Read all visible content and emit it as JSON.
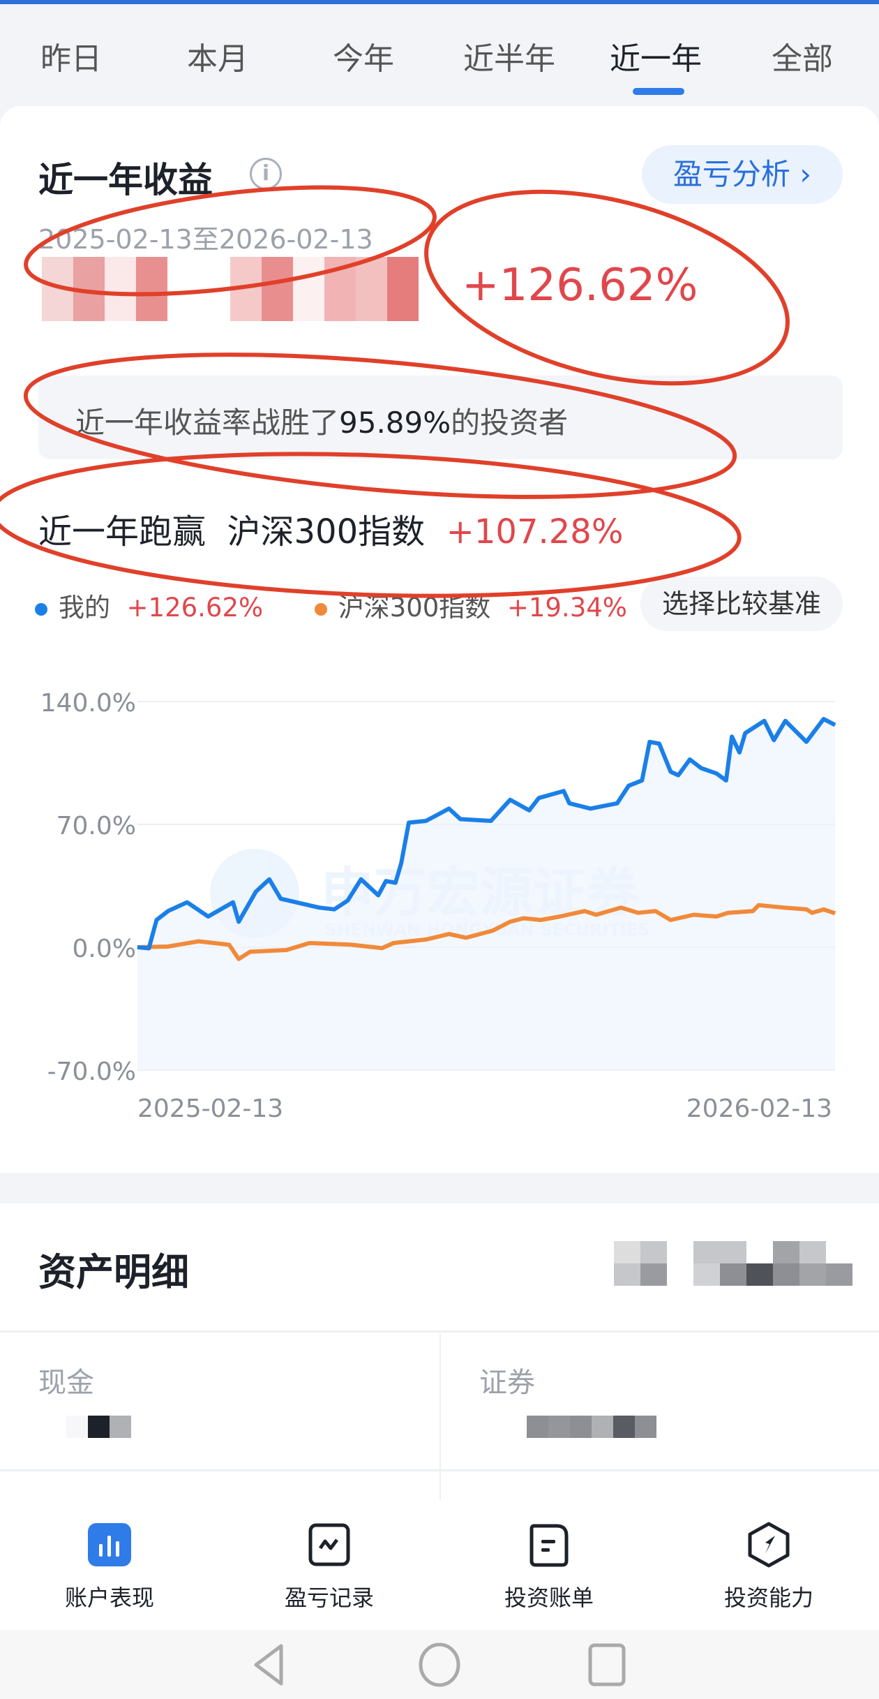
{
  "tabs": [
    {
      "label": "昨日"
    },
    {
      "label": "本月"
    },
    {
      "label": "今年"
    },
    {
      "label": "近半年"
    },
    {
      "label": "近一年",
      "active": true
    },
    {
      "label": "全部"
    }
  ],
  "summary": {
    "title": "近一年收益",
    "info_icon": "info-icon",
    "analysis_button": "盈亏分析",
    "analysis_chevron": "›",
    "date_range": "2025-02-13至2026-02-13",
    "return_pct": "+126.62%",
    "beat_prefix": "近一年收益率战胜了",
    "beat_pct": "95.89%",
    "beat_suffix": "的投资者",
    "outrun_label": "近一年跑赢  沪深300指数",
    "outrun_value": "+107.28%"
  },
  "legend": {
    "mine_label": "我的",
    "mine_value": "+126.62%",
    "bench_label": "沪深300指数",
    "bench_value": "+19.34%",
    "choose_benchmark": "选择比较基准"
  },
  "colors": {
    "mine": "#1a7fe8",
    "bench": "#f08a3a",
    "positive": "#e0474c",
    "accent": "#2a6fdb",
    "annotation": "#e0402a"
  },
  "chart_data": {
    "type": "line",
    "x_tick_labels": [
      "2025-02-13",
      "2026-02-13"
    ],
    "y_tick_labels": [
      "140.0%",
      "70.0%",
      "0.0%",
      "-70.0%"
    ],
    "ylim": [
      -70,
      140
    ],
    "xlim": [
      "2025-02-13",
      "2026-02-13"
    ],
    "grid": true,
    "watermark": "申万宏源证券 SHENWAN HONGYUAN SECURITIES",
    "series": [
      {
        "name": "我的",
        "color": "#1a7fe8",
        "points": [
          [
            "2025-02-13",
            0
          ],
          [
            "2025-02-19",
            -0.6
          ],
          [
            "2025-02-23",
            15.5
          ],
          [
            "2025-03-01",
            20.6
          ],
          [
            "2025-03-11",
            25.6
          ],
          [
            "2025-03-22",
            17.5
          ],
          [
            "2025-04-04",
            25.6
          ],
          [
            "2025-04-07",
            14.5
          ],
          [
            "2025-04-16",
            31.7
          ],
          [
            "2025-04-23",
            38.7
          ],
          [
            "2025-04-29",
            27.6
          ],
          [
            "2025-05-19",
            22.6
          ],
          [
            "2025-05-27",
            21.6
          ],
          [
            "2025-06-03",
            26.6
          ],
          [
            "2025-06-10",
            38.7
          ],
          [
            "2025-06-19",
            29.6
          ],
          [
            "2025-06-23",
            37.7
          ],
          [
            "2025-06-28",
            36.7
          ],
          [
            "2025-07-01",
            47.8
          ],
          [
            "2025-07-05",
            71
          ],
          [
            "2025-07-14",
            72
          ],
          [
            "2025-07-26",
            79
          ],
          [
            "2025-08-01",
            73
          ],
          [
            "2025-08-17",
            72
          ],
          [
            "2025-08-27",
            84
          ],
          [
            "2025-09-06",
            78
          ],
          [
            "2025-09-11",
            85
          ],
          [
            "2025-09-24",
            89
          ],
          [
            "2025-09-27",
            82
          ],
          [
            "2025-10-08",
            79
          ],
          [
            "2025-10-22",
            82
          ],
          [
            "2025-10-28",
            92
          ],
          [
            "2025-11-04",
            95
          ],
          [
            "2025-11-08",
            117
          ],
          [
            "2025-11-13",
            116
          ],
          [
            "2025-11-19",
            100
          ],
          [
            "2025-11-23",
            98
          ],
          [
            "2025-11-29",
            107
          ],
          [
            "2025-12-05",
            102
          ],
          [
            "2025-12-13",
            99
          ],
          [
            "2025-12-18",
            95
          ],
          [
            "2025-12-21",
            120
          ],
          [
            "2025-12-25",
            111
          ],
          [
            "2025-12-28",
            122
          ],
          [
            "2026-01-07",
            129
          ],
          [
            "2026-01-12",
            118
          ],
          [
            "2026-01-18",
            129
          ],
          [
            "2026-01-29",
            117
          ],
          [
            "2026-02-07",
            130
          ],
          [
            "2026-02-13",
            126.62
          ]
        ]
      },
      {
        "name": "沪深300指数",
        "color": "#f08a3a",
        "points": [
          [
            "2025-02-13",
            0
          ],
          [
            "2025-03-01",
            0.4
          ],
          [
            "2025-03-17",
            3.4
          ],
          [
            "2025-04-02",
            1.4
          ],
          [
            "2025-04-07",
            -6.7
          ],
          [
            "2025-04-13",
            -2.6
          ],
          [
            "2025-05-02",
            -1.6
          ],
          [
            "2025-05-14",
            2.4
          ],
          [
            "2025-06-04",
            1.5
          ],
          [
            "2025-06-21",
            -0.5
          ],
          [
            "2025-06-27",
            2.4
          ],
          [
            "2025-07-14",
            4.4
          ],
          [
            "2025-07-26",
            7.5
          ],
          [
            "2025-08-04",
            5.4
          ],
          [
            "2025-08-18",
            9.5
          ],
          [
            "2025-08-27",
            14.5
          ],
          [
            "2025-09-03",
            16.5
          ],
          [
            "2025-09-12",
            15.5
          ],
          [
            "2025-09-22",
            17.5
          ],
          [
            "2025-10-05",
            20.6
          ],
          [
            "2025-10-11",
            18.5
          ],
          [
            "2025-10-24",
            22.6
          ],
          [
            "2025-11-02",
            19.6
          ],
          [
            "2025-11-11",
            20.6
          ],
          [
            "2025-11-19",
            15.5
          ],
          [
            "2025-12-01",
            18.5
          ],
          [
            "2025-12-13",
            17.5
          ],
          [
            "2025-12-19",
            19.6
          ],
          [
            "2026-01-01",
            20.6
          ],
          [
            "2026-01-04",
            24
          ],
          [
            "2026-01-17",
            22.6
          ],
          [
            "2026-01-29",
            21.6
          ],
          [
            "2026-02-01",
            19.6
          ],
          [
            "2026-02-07",
            21.5
          ],
          [
            "2026-02-13",
            19.34
          ]
        ]
      }
    ]
  },
  "assets": {
    "title": "资产明细",
    "cash_label": "现金",
    "securities_label": "证券"
  },
  "bottom_nav": [
    {
      "label": "账户表现",
      "icon": "bar-chart-icon",
      "active": true
    },
    {
      "label": "盈亏记录",
      "icon": "trend-chart-icon"
    },
    {
      "label": "投资账单",
      "icon": "bill-icon"
    },
    {
      "label": "投资能力",
      "icon": "compass-icon"
    }
  ],
  "system_nav": {
    "back": "back-icon",
    "home": "home-icon",
    "recents": "recents-icon"
  }
}
